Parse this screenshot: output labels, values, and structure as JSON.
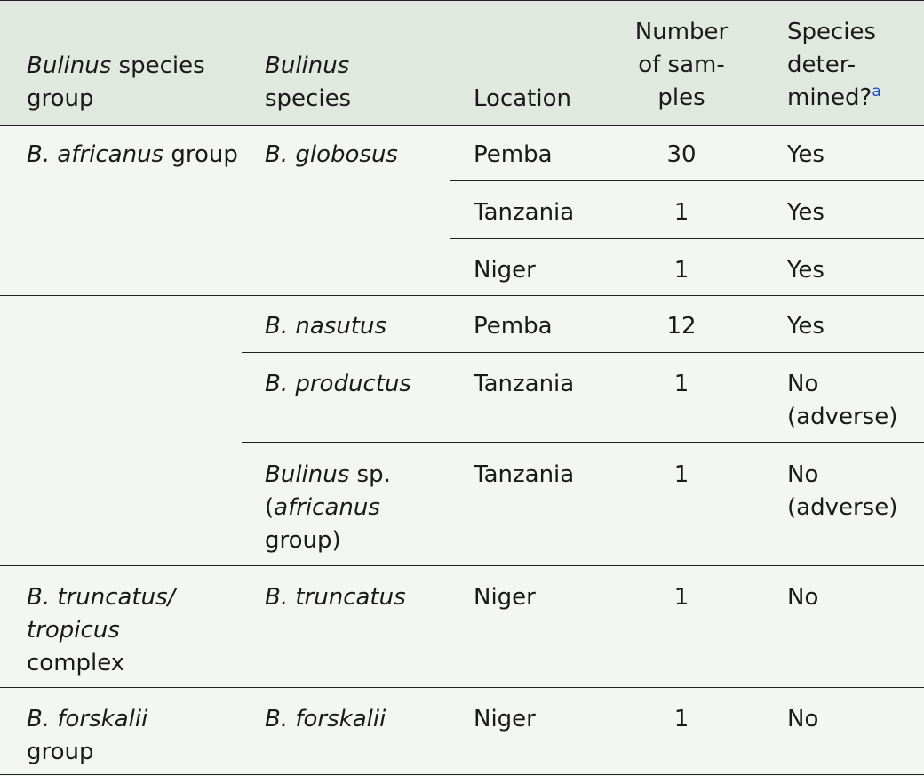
{
  "header": {
    "group_prefix": "Bulinus",
    "group_suffix": " species",
    "group_line2": "group",
    "species_line1": "Bulinus",
    "species_line2": "species",
    "location": "Location",
    "samples_line1": "Number",
    "samples_line2": "of sam-",
    "samples_line3": "ples",
    "determined_line1": "Species",
    "determined_line2": "deter-",
    "determined_line3": "mined?",
    "footnote_mark": "a"
  },
  "rows": [
    {
      "group": {
        "italic": "B. africanus",
        "plain": " group"
      },
      "species": "B. globosus",
      "location": "Pemba",
      "samples": "30",
      "determined": "Yes"
    },
    {
      "location": "Tanzania",
      "samples": "1",
      "determined": "Yes"
    },
    {
      "location": "Niger",
      "samples": "1",
      "determined": "Yes"
    },
    {
      "species": "B. nasutus",
      "location": "Pemba",
      "samples": "12",
      "determined": "Yes"
    },
    {
      "species": "B. productus",
      "location": "Tanzania",
      "samples": "1",
      "determined_line1": "No",
      "determined_line2": "(adverse)"
    },
    {
      "species_italic": "Bulinus",
      "species_plain": " sp.",
      "species_line2_open": "(",
      "species_line2_italic": "africanus",
      "species_line3": "group)",
      "location": "Tanzania",
      "samples": "1",
      "determined_line1": "No",
      "determined_line2": "(adverse)"
    },
    {
      "group_line1": "B. truncatus/",
      "group_line2": "tropicus",
      "group_line3": "complex",
      "species": "B. truncatus",
      "location": "Niger",
      "samples": "1",
      "determined": "No"
    },
    {
      "group_line1": "B. forskalii",
      "group_line2": "group",
      "species": "B. forskalii",
      "location": "Niger",
      "samples": "1",
      "determined": "No"
    }
  ]
}
